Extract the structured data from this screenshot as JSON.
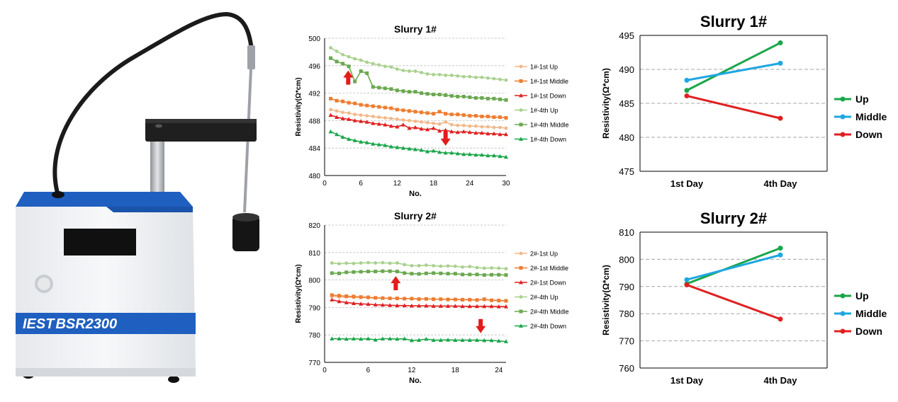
{
  "device": {
    "brand_mark": "IEST",
    "model": "BSR2300",
    "colors": {
      "blue": "#1f5fbf",
      "body": "#f1f2f4",
      "black": "#1b1b1b",
      "metal": "#b9bcc1"
    }
  },
  "chart_data": [
    {
      "type": "line",
      "title": "Slurry 1#",
      "xlabel": "No.",
      "ylabel": "Resistivity(Ω*cm)",
      "xlim": [
        0,
        30
      ],
      "ylim": [
        480,
        500
      ],
      "xticks": [
        0,
        6,
        12,
        18,
        24,
        30
      ],
      "yticks": [
        480,
        484,
        488,
        492,
        496,
        500
      ],
      "grid": "horizontal dashed",
      "legend_position": "right",
      "series": [
        {
          "name": "1#-1st Up",
          "color": "#f2b888",
          "marker": "circle",
          "x": [
            1,
            2,
            3,
            4,
            5,
            6,
            7,
            8,
            9,
            10,
            11,
            12,
            13,
            14,
            15,
            16,
            17,
            18,
            19,
            20,
            21,
            22,
            23,
            24,
            25,
            26,
            27,
            28,
            29,
            30
          ],
          "values": [
            489.6,
            489.4,
            489.2,
            489.1,
            488.9,
            488.8,
            488.7,
            488.6,
            488.5,
            488.4,
            488.3,
            488.2,
            488.1,
            488.0,
            487.9,
            487.8,
            487.7,
            487.6,
            487.5,
            487.8,
            487.4,
            487.3,
            487.3,
            487.2,
            487.2,
            487.1,
            487.1,
            487.0,
            487.0,
            486.9
          ]
        },
        {
          "name": "1#-1st Middle",
          "color": "#ed7d31",
          "marker": "square",
          "x": [
            1,
            2,
            3,
            4,
            5,
            6,
            7,
            8,
            9,
            10,
            11,
            12,
            13,
            14,
            15,
            16,
            17,
            18,
            19,
            20,
            21,
            22,
            23,
            24,
            25,
            26,
            27,
            28,
            29,
            30
          ],
          "values": [
            491.2,
            490.9,
            490.8,
            490.6,
            490.5,
            490.3,
            490.2,
            490.1,
            490.0,
            489.9,
            489.8,
            489.6,
            489.5,
            489.4,
            489.3,
            489.2,
            489.1,
            489.0,
            489.3,
            489.0,
            488.9,
            488.9,
            488.8,
            488.7,
            488.7,
            488.6,
            488.6,
            488.5,
            488.5,
            488.4
          ]
        },
        {
          "name": "1#-1st Down",
          "color": "#e02020",
          "marker": "triangle",
          "x": [
            1,
            2,
            3,
            4,
            5,
            6,
            7,
            8,
            9,
            10,
            11,
            12,
            13,
            14,
            15,
            16,
            17,
            18,
            19,
            20,
            21,
            22,
            23,
            24,
            25,
            26,
            27,
            28,
            29,
            30
          ],
          "values": [
            488.8,
            488.5,
            488.3,
            488.2,
            488.0,
            487.9,
            487.8,
            487.6,
            487.5,
            487.4,
            487.2,
            487.1,
            487.4,
            486.9,
            487.0,
            486.8,
            486.7,
            486.9,
            486.5,
            486.6,
            486.4,
            486.3,
            486.4,
            486.3,
            486.2,
            486.2,
            486.1,
            486.1,
            486.0,
            486.0
          ]
        },
        {
          "name": "1#-4th Up",
          "color": "#a9d18e",
          "marker": "circle",
          "x": [
            1,
            2,
            3,
            4,
            5,
            6,
            7,
            8,
            9,
            10,
            11,
            12,
            13,
            14,
            15,
            16,
            17,
            18,
            19,
            20,
            21,
            22,
            23,
            24,
            25,
            26,
            27,
            28,
            29,
            30
          ],
          "values": [
            498.6,
            498.1,
            497.6,
            497.3,
            497.0,
            496.8,
            496.5,
            496.3,
            496.1,
            495.9,
            495.8,
            495.5,
            495.3,
            495.2,
            495.2,
            495.0,
            494.8,
            494.7,
            494.7,
            494.6,
            494.6,
            494.5,
            494.4,
            494.4,
            494.3,
            494.3,
            494.2,
            494.1,
            494.0,
            493.9
          ]
        },
        {
          "name": "1#-4th Middle",
          "color": "#6aa84f",
          "marker": "square",
          "x": [
            1,
            2,
            3,
            4,
            5,
            6,
            7,
            8,
            9,
            10,
            11,
            12,
            13,
            14,
            15,
            16,
            17,
            18,
            19,
            20,
            21,
            22,
            23,
            24,
            25,
            26,
            27,
            28,
            29,
            30
          ],
          "values": [
            497.1,
            496.6,
            496.3,
            495.9,
            493.7,
            495.2,
            494.9,
            492.9,
            492.8,
            492.7,
            492.6,
            492.4,
            492.3,
            492.2,
            492.2,
            492.0,
            491.9,
            491.8,
            491.8,
            491.7,
            491.6,
            491.5,
            491.5,
            491.4,
            491.3,
            491.3,
            491.2,
            491.2,
            491.1,
            491.0
          ]
        },
        {
          "name": "1#-4th Down",
          "color": "#1aa64a",
          "marker": "triangle",
          "x": [
            1,
            2,
            3,
            4,
            5,
            6,
            7,
            8,
            9,
            10,
            11,
            12,
            13,
            14,
            15,
            16,
            17,
            18,
            19,
            20,
            21,
            22,
            23,
            24,
            25,
            26,
            27,
            28,
            29,
            30
          ],
          "values": [
            486.4,
            486.0,
            485.6,
            485.3,
            485.1,
            484.9,
            484.8,
            484.6,
            484.5,
            484.4,
            484.2,
            484.1,
            484.0,
            483.9,
            483.8,
            483.7,
            483.5,
            483.6,
            483.4,
            483.3,
            483.3,
            483.2,
            483.1,
            483.1,
            483.0,
            483.0,
            482.9,
            482.9,
            482.8,
            482.7
          ]
        }
      ]
    },
    {
      "type": "line",
      "title": "Slurry 2#",
      "xlabel": "No.",
      "ylabel": "Resistivity(Ω*cm)",
      "xlim": [
        0,
        25
      ],
      "ylim": [
        770,
        820
      ],
      "xticks": [
        0,
        6,
        12,
        18,
        24
      ],
      "yticks": [
        770,
        780,
        790,
        800,
        810,
        820
      ],
      "grid": "horizontal dashed",
      "legend_position": "right",
      "series": [
        {
          "name": "2#-1st Up",
          "color": "#f2b888",
          "marker": "circle",
          "x": [
            1,
            2,
            3,
            4,
            5,
            6,
            7,
            8,
            9,
            10,
            11,
            12,
            13,
            14,
            15,
            16,
            17,
            18,
            19,
            20,
            21,
            22,
            23,
            24,
            25
          ],
          "values": [
            794.0,
            793.8,
            793.8,
            793.6,
            793.6,
            793.5,
            793.4,
            793.4,
            793.3,
            793.3,
            793.2,
            793.2,
            793.2,
            793.1,
            793.1,
            793.0,
            793.0,
            793.0,
            792.9,
            792.9,
            792.8,
            792.8,
            792.7,
            792.6,
            792.5
          ]
        },
        {
          "name": "2#-1st Middle",
          "color": "#ed7d31",
          "marker": "square",
          "x": [
            1,
            2,
            3,
            4,
            5,
            6,
            7,
            8,
            9,
            10,
            11,
            12,
            13,
            14,
            15,
            16,
            17,
            18,
            19,
            20,
            21,
            22,
            23,
            24,
            25
          ],
          "values": [
            794.5,
            794.3,
            794.1,
            794.0,
            793.8,
            793.7,
            793.5,
            793.4,
            793.3,
            793.3,
            793.2,
            793.2,
            793.0,
            793.1,
            793.0,
            793.0,
            792.9,
            792.9,
            792.8,
            792.8,
            792.7,
            793.0,
            792.6,
            792.5,
            792.4
          ]
        },
        {
          "name": "2#-1st Down",
          "color": "#e02020",
          "marker": "triangle",
          "x": [
            1,
            2,
            3,
            4,
            5,
            6,
            7,
            8,
            9,
            10,
            11,
            12,
            13,
            14,
            15,
            16,
            17,
            18,
            19,
            20,
            21,
            22,
            23,
            24,
            25
          ],
          "values": [
            792.8,
            792.2,
            791.8,
            791.5,
            791.3,
            791.2,
            791.0,
            790.9,
            790.8,
            790.7,
            790.7,
            790.6,
            790.6,
            790.6,
            790.5,
            790.5,
            790.5,
            790.5,
            790.4,
            790.4,
            790.4,
            790.4,
            790.4,
            790.3,
            790.3
          ]
        },
        {
          "name": "2#-4th Up",
          "color": "#a9d18e",
          "marker": "circle",
          "x": [
            1,
            2,
            3,
            4,
            5,
            6,
            7,
            8,
            9,
            10,
            11,
            12,
            13,
            14,
            15,
            16,
            17,
            18,
            19,
            20,
            21,
            22,
            23,
            24,
            25
          ],
          "values": [
            806.2,
            805.9,
            806.1,
            806.0,
            806.2,
            806.3,
            806.2,
            806.3,
            806.1,
            806.2,
            805.6,
            805.2,
            805.2,
            805.4,
            805.2,
            805.0,
            805.1,
            805.0,
            804.7,
            804.9,
            804.5,
            804.3,
            804.4,
            804.3,
            804.1
          ]
        },
        {
          "name": "2#-4th Middle",
          "color": "#6aa84f",
          "marker": "square",
          "x": [
            1,
            2,
            3,
            4,
            5,
            6,
            7,
            8,
            9,
            10,
            11,
            12,
            13,
            14,
            15,
            16,
            17,
            18,
            19,
            20,
            21,
            22,
            23,
            24,
            25
          ],
          "values": [
            802.5,
            802.4,
            802.8,
            802.9,
            803.0,
            803.1,
            803.1,
            803.2,
            803.2,
            803.1,
            802.5,
            802.3,
            802.2,
            802.4,
            802.5,
            802.4,
            802.3,
            802.3,
            802.0,
            802.0,
            802.0,
            801.8,
            801.9,
            801.9,
            801.8
          ]
        },
        {
          "name": "2#-4th Down",
          "color": "#1aa64a",
          "marker": "triangle",
          "x": [
            1,
            2,
            3,
            4,
            5,
            6,
            7,
            8,
            9,
            10,
            11,
            12,
            13,
            14,
            15,
            16,
            17,
            18,
            19,
            20,
            21,
            22,
            23,
            24,
            25
          ],
          "values": [
            778.6,
            778.6,
            778.5,
            778.6,
            778.5,
            778.6,
            778.2,
            778.6,
            778.6,
            778.5,
            778.6,
            778.0,
            778.1,
            778.5,
            778.1,
            778.1,
            778.2,
            778.1,
            778.1,
            778.1,
            778.1,
            778.0,
            778.0,
            777.8,
            777.6
          ]
        }
      ]
    },
    {
      "type": "line",
      "title": "Slurry 1#",
      "xlabel": "",
      "ylabel": "Resistivity(Ω*cm)",
      "categories": [
        "1st Day",
        "4th Day"
      ],
      "ylim": [
        475,
        495
      ],
      "yticks": [
        475,
        480,
        485,
        490,
        495
      ],
      "grid": "horizontal dashed",
      "legend_position": "right",
      "series": [
        {
          "name": "Up",
          "color": "#1aa64a",
          "values": [
            486.9,
            493.9
          ]
        },
        {
          "name": "Middle",
          "color": "#1ea7e1",
          "values": [
            488.4,
            490.9
          ]
        },
        {
          "name": "Down",
          "color": "#e02020",
          "values": [
            486.1,
            482.8
          ]
        }
      ]
    },
    {
      "type": "line",
      "title": "Slurry 2#",
      "xlabel": "",
      "ylabel": "Resistivity(Ω*cm)",
      "categories": [
        "1st Day",
        "4th Day"
      ],
      "ylim": [
        760,
        810
      ],
      "yticks": [
        760,
        770,
        780,
        790,
        800,
        810
      ],
      "grid": "horizontal dashed",
      "legend_position": "right",
      "series": [
        {
          "name": "Up",
          "color": "#1aa64a",
          "values": [
            791.0,
            804.1
          ]
        },
        {
          "name": "Middle",
          "color": "#1ea7e1",
          "values": [
            792.5,
            801.6
          ]
        },
        {
          "name": "Down",
          "color": "#e02020",
          "values": [
            790.6,
            778.0
          ]
        }
      ]
    }
  ]
}
